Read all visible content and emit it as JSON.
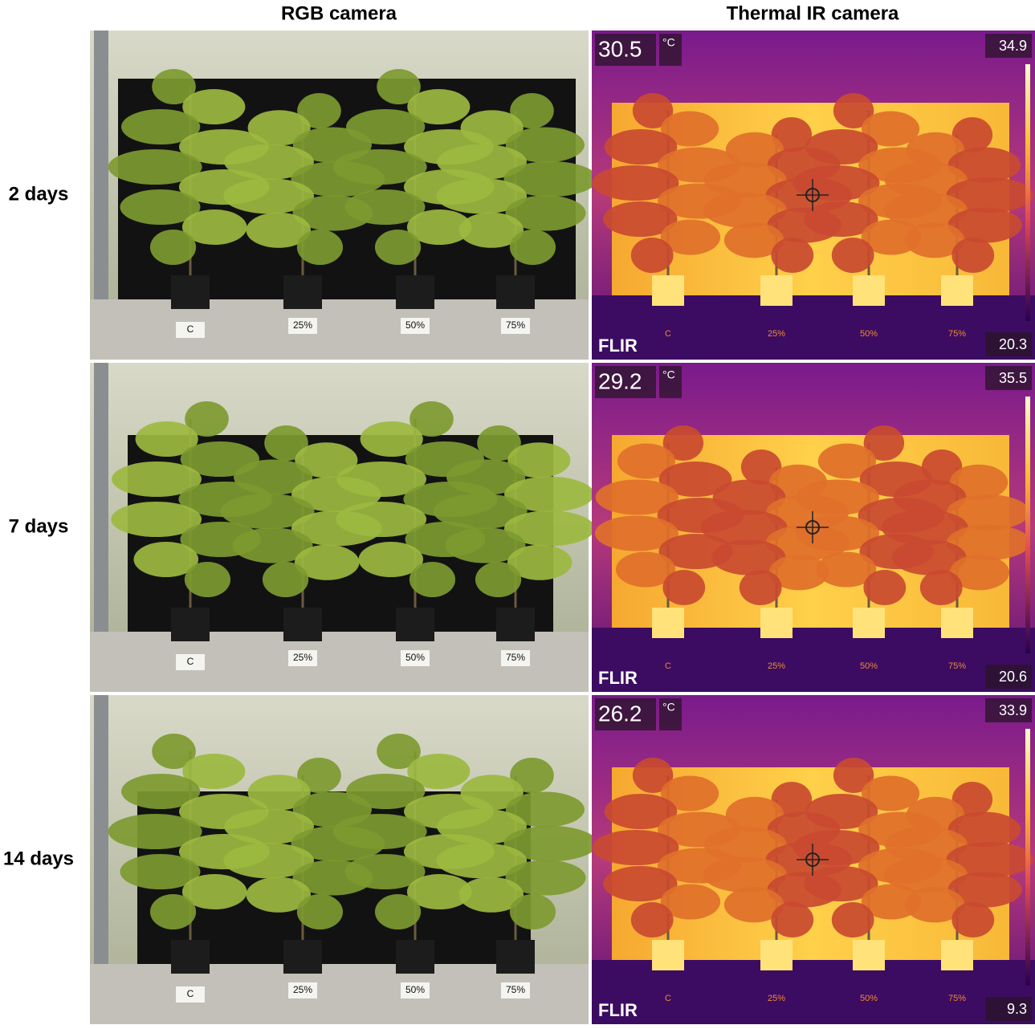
{
  "columns": [
    "RGB camera",
    "Thermal IR camera"
  ],
  "rows": [
    {
      "label": "2 days",
      "rgb": {
        "pot_labels": [
          "C",
          "25%",
          "50%",
          "75%"
        ]
      },
      "thermal": {
        "spot": 30.5,
        "unit": "°C",
        "max": 34.9,
        "min": 20.3,
        "brand": "FLIR",
        "pot_labels": [
          "C",
          "25%",
          "50%",
          "75%"
        ]
      }
    },
    {
      "label": "7 days",
      "rgb": {
        "pot_labels": [
          "C",
          "25%",
          "50%",
          "75%"
        ]
      },
      "thermal": {
        "spot": 29.2,
        "unit": "°C",
        "max": 35.5,
        "min": 20.6,
        "brand": "FLIR",
        "pot_labels": [
          "C",
          "25%",
          "50%",
          "75%"
        ]
      }
    },
    {
      "label": "14 days",
      "rgb": {
        "pot_labels": [
          "C",
          "25%",
          "50%",
          "75%"
        ]
      },
      "thermal": {
        "spot": 26.2,
        "unit": "°C",
        "max": 33.9,
        "min": 9.3,
        "brand": "FLIR",
        "pot_labels": [
          "C",
          "25%",
          "50%",
          "75%"
        ]
      }
    }
  ]
}
